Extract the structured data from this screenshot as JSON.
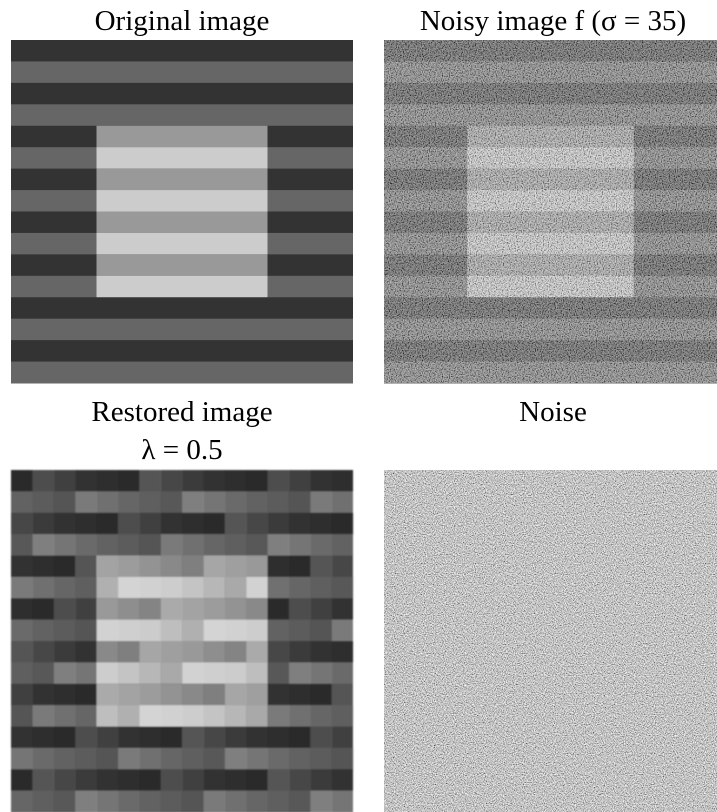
{
  "panels": [
    {
      "title": "Original image"
    },
    {
      "title": "Noisy image f (σ = 35)"
    },
    {
      "title": "Restored image",
      "subtitle": "λ = 0.5"
    },
    {
      "title": "Noise"
    }
  ]
}
